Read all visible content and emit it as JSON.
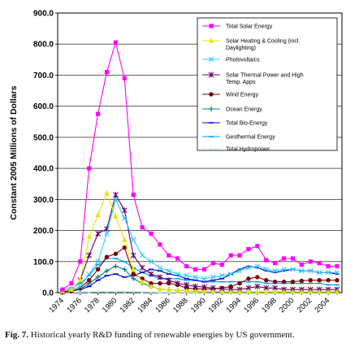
{
  "chart_data": {
    "type": "line",
    "ylabel": "Constant 2005 Millions of Dollars",
    "ylim": [
      0,
      900
    ],
    "yticks": [
      "0.0",
      "100.0",
      "200.0",
      "300.0",
      "400.0",
      "500.0",
      "600.0",
      "700.0",
      "800.0",
      "900.0"
    ],
    "x": [
      1974,
      1975,
      1976,
      1977,
      1978,
      1979,
      1980,
      1981,
      1982,
      1983,
      1984,
      1985,
      1986,
      1987,
      1988,
      1989,
      1990,
      1991,
      1992,
      1993,
      1994,
      1995,
      1996,
      1997,
      1998,
      1999,
      2000,
      2001,
      2002,
      2003,
      2004,
      2005
    ],
    "xticks": [
      "1974",
      "1976",
      "1978",
      "1980",
      "1982",
      "1984",
      "1986",
      "1988",
      "1990",
      "1992",
      "1994",
      "1996",
      "1998",
      "2000",
      "2002",
      "2004"
    ],
    "grid": "horizontal",
    "legend_position": "top-right",
    "series": [
      {
        "name": "Total Solar Energy",
        "color": "#ff00ff",
        "marker": "square",
        "values": [
          10,
          30,
          100,
          400,
          575,
          710,
          805,
          690,
          315,
          210,
          190,
          155,
          120,
          110,
          85,
          75,
          75,
          95,
          90,
          120,
          120,
          140,
          150,
          105,
          95,
          110,
          110,
          90,
          100,
          95,
          85,
          85
        ]
      },
      {
        "name": "Solar Heating & Cooling (incl. Daylighting)",
        "color": "#e6e600",
        "marker": "triangle",
        "values": [
          5,
          10,
          40,
          180,
          250,
          320,
          245,
          170,
          75,
          35,
          20,
          12,
          10,
          8,
          6,
          5,
          4,
          4,
          3,
          3,
          3,
          3,
          3,
          3,
          3,
          3,
          3,
          3,
          3,
          3,
          3,
          3
        ]
      },
      {
        "name": "Photovoltaics",
        "color": "#33ccff",
        "marker": "x",
        "values": [
          5,
          10,
          20,
          60,
          100,
          190,
          300,
          240,
          170,
          120,
          100,
          80,
          70,
          60,
          55,
          50,
          45,
          50,
          55,
          60,
          70,
          80,
          85,
          75,
          70,
          75,
          75,
          70,
          70,
          65,
          65,
          65
        ]
      },
      {
        "name": "Solar Thermal Power and High Temp. Apps",
        "color": "#660066",
        "marker": "star",
        "values": [
          3,
          10,
          40,
          120,
          190,
          205,
          315,
          265,
          120,
          80,
          60,
          50,
          40,
          30,
          25,
          20,
          18,
          15,
          12,
          10,
          10,
          15,
          20,
          15,
          15,
          10,
          10,
          10,
          10,
          10,
          10,
          10
        ]
      },
      {
        "name": "Wind Energy",
        "color": "#800000",
        "marker": "circle",
        "values": [
          2,
          5,
          15,
          40,
          75,
          115,
          125,
          145,
          60,
          45,
          30,
          30,
          30,
          25,
          15,
          12,
          12,
          12,
          15,
          20,
          30,
          45,
          50,
          40,
          35,
          35,
          35,
          38,
          40,
          40,
          40,
          40
        ]
      },
      {
        "name": "Ocean Energy",
        "color": "#008080",
        "marker": "plus",
        "values": [
          0,
          5,
          10,
          30,
          50,
          70,
          85,
          75,
          45,
          30,
          20,
          12,
          10,
          8,
          6,
          4,
          3,
          2,
          1,
          1,
          1,
          1,
          1,
          1,
          1,
          1,
          1,
          1,
          1,
          1,
          1,
          1
        ]
      },
      {
        "name": "Total Bio-Energy",
        "color": "#0000cc",
        "marker": "dash",
        "values": [
          0,
          5,
          10,
          20,
          40,
          55,
          60,
          50,
          55,
          65,
          75,
          70,
          60,
          55,
          45,
          40,
          35,
          40,
          45,
          60,
          75,
          85,
          80,
          70,
          65,
          70,
          75,
          70,
          70,
          65,
          65,
          60
        ]
      },
      {
        "name": "Geothermal Energy",
        "color": "#0099ff",
        "marker": "dash",
        "values": [
          5,
          15,
          30,
          55,
          90,
          110,
          110,
          100,
          80,
          65,
          55,
          45,
          45,
          45,
          40,
          40,
          35,
          35,
          35,
          35,
          35,
          35,
          35,
          30,
          30,
          30,
          30,
          30,
          30,
          30,
          25,
          25
        ]
      },
      {
        "name": "Total Hydropower",
        "color": "#bbeeff",
        "marker": "dot",
        "values": [
          1,
          1,
          2,
          2,
          3,
          3,
          3,
          3,
          3,
          2,
          2,
          1,
          1,
          1,
          1,
          1,
          1,
          1,
          1,
          1,
          1,
          1,
          1,
          1,
          1,
          1,
          1,
          1,
          1,
          1,
          1,
          1
        ]
      }
    ]
  },
  "caption": {
    "label": "Fig. 7.",
    "text": "Historical yearly R&D funding of renewable energies by US government."
  }
}
